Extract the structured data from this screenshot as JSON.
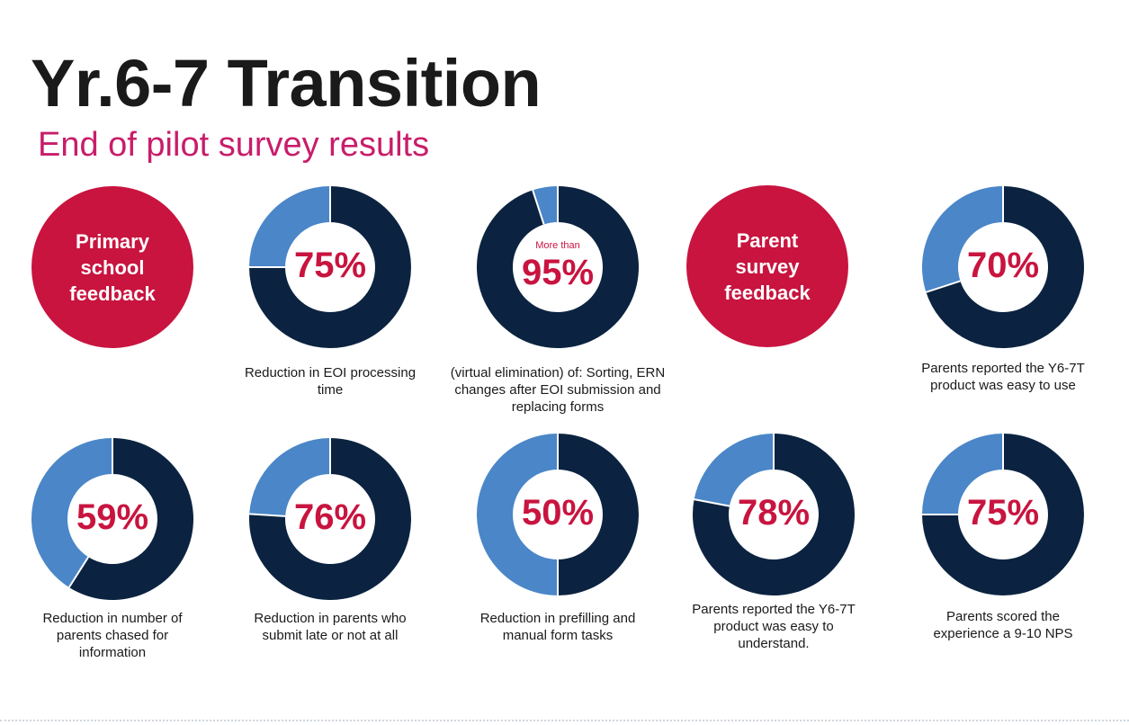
{
  "header": {
    "title": "Yr.6-7 Transition",
    "subtitle": "End of pilot survey results"
  },
  "badges": {
    "primary": "Primary school feedback",
    "parent": "Parent survey feedback"
  },
  "colors": {
    "dark": "#0b2340",
    "light": "#4a86c8",
    "accent": "#c8143f",
    "subtitle": "#c81d6a"
  },
  "chart_data": [
    {
      "type": "donut",
      "value": 75,
      "label": "75%",
      "caption": "Reduction in EOI processing time"
    },
    {
      "type": "donut",
      "value": 95,
      "lead": "More than",
      "label": "95%",
      "caption": "(virtual elimination) of: Sorting, ERN changes after EOI submission and replacing forms"
    },
    {
      "type": "donut",
      "value": 70,
      "label": "70%",
      "caption": "Parents reported the Y6-7T product was easy to use"
    },
    {
      "type": "donut",
      "value": 59,
      "label": "59%",
      "caption": "Reduction in number of parents chased for information"
    },
    {
      "type": "donut",
      "value": 76,
      "label": "76%",
      "caption": "Reduction in parents who submit late or not at all"
    },
    {
      "type": "donut",
      "value": 50,
      "label": "50%",
      "caption": "Reduction in prefilling and manual form tasks"
    },
    {
      "type": "donut",
      "value": 78,
      "label": "78%",
      "caption": "Parents reported the Y6-7T product was easy to understand."
    },
    {
      "type": "donut",
      "value": 75,
      "label": "75%",
      "caption": "Parents scored the experience a 9-10 NPS"
    }
  ]
}
